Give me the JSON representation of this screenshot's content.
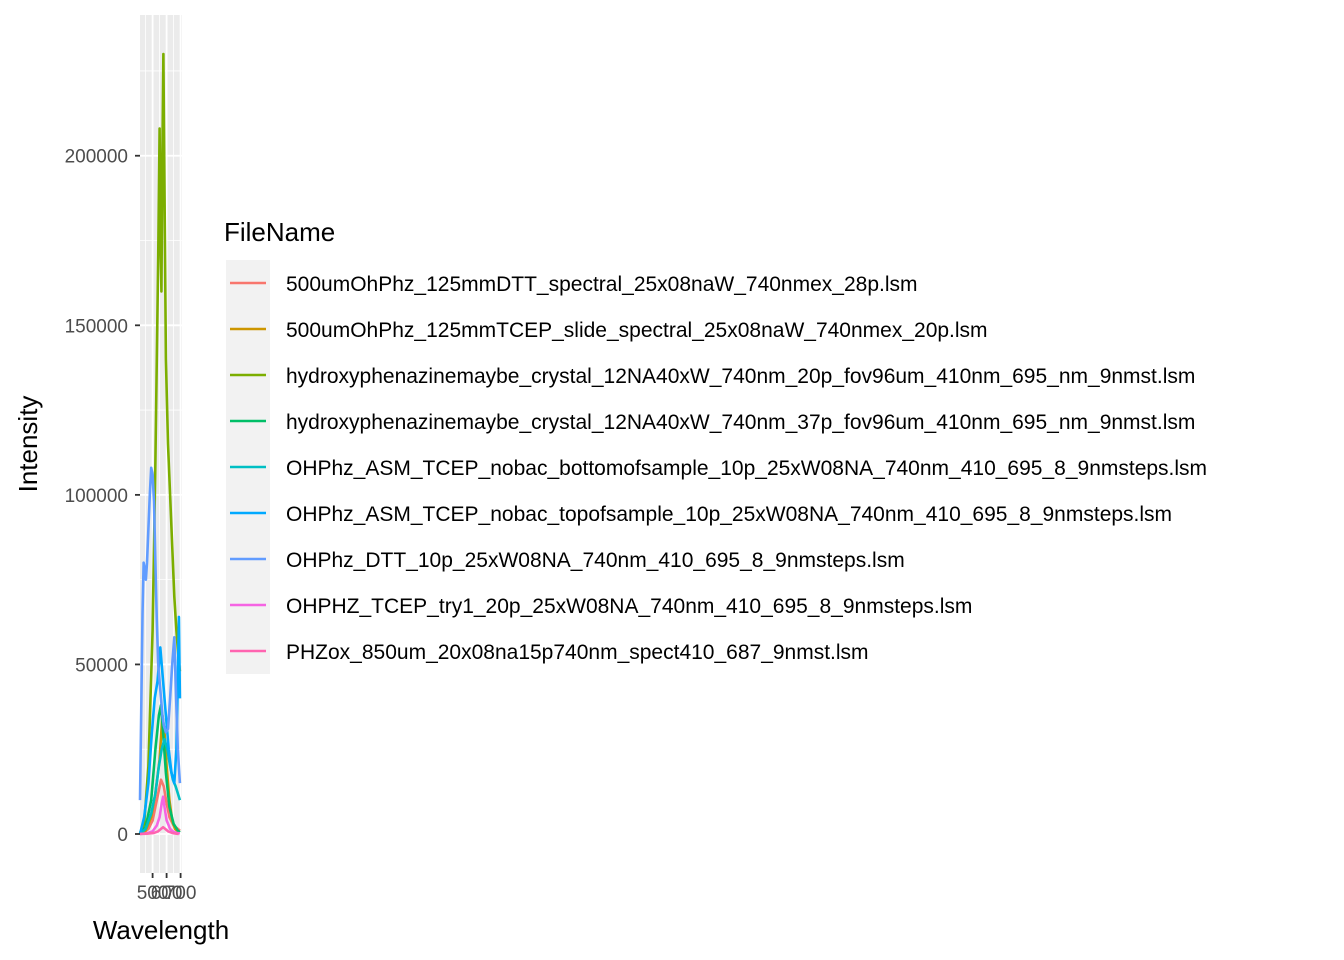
{
  "chart_data": {
    "type": "line",
    "title": "",
    "xlabel": "Wavelength",
    "ylabel": "Intensity",
    "xlim": [
      410,
      710
    ],
    "ylim": [
      -11500,
      241500
    ],
    "x_ticks": [
      500,
      600,
      700
    ],
    "x_tick_labels": [
      "500",
      "600",
      "700"
    ],
    "y_ticks": [
      0,
      50000,
      100000,
      150000,
      200000
    ],
    "y_tick_labels": [
      "0",
      "50000",
      "100000",
      "150000",
      "200000"
    ],
    "grid": true,
    "legend": {
      "title": "FileName",
      "placement": "right"
    },
    "series": [
      {
        "name": "500umOhPhz_125mmDTT_spectral_25x08naW_740nmex_28p.lsm",
        "color": "#F8766D",
        "points": [
          [
            410,
            200
          ],
          [
            440,
            500
          ],
          [
            470,
            1500
          ],
          [
            500,
            4000
          ],
          [
            520,
            8000
          ],
          [
            540,
            12000
          ],
          [
            560,
            16000
          ],
          [
            580,
            14000
          ],
          [
            600,
            9000
          ],
          [
            620,
            5000
          ],
          [
            650,
            2500
          ],
          [
            680,
            1500
          ],
          [
            695,
            1000
          ]
        ]
      },
      {
        "name": "500umOhPhz_125mmTCEP_slide_spectral_25x08naW_740nmex_20p.lsm",
        "color": "#CD9600",
        "points": [
          [
            410,
            200
          ],
          [
            450,
            1000
          ],
          [
            490,
            5000
          ],
          [
            520,
            12000
          ],
          [
            550,
            22000
          ],
          [
            570,
            35000
          ],
          [
            585,
            30000
          ],
          [
            600,
            20000
          ],
          [
            620,
            10000
          ],
          [
            640,
            4000
          ],
          [
            660,
            1500
          ],
          [
            680,
            800
          ],
          [
            695,
            600
          ]
        ]
      },
      {
        "name": "hydroxyphenazinemaybe_crystal_12NA40xW_740nm_20p_fov96um_410nm_695_nm_9nmst.lsm",
        "color": "#7CAE00",
        "points": [
          [
            410,
            300
          ],
          [
            440,
            3000
          ],
          [
            470,
            20000
          ],
          [
            500,
            60000
          ],
          [
            520,
            110000
          ],
          [
            540,
            170000
          ],
          [
            550,
            208000
          ],
          [
            557,
            175000
          ],
          [
            563,
            160000
          ],
          [
            570,
            200000
          ],
          [
            577,
            230000
          ],
          [
            585,
            190000
          ],
          [
            595,
            140000
          ],
          [
            610,
            115000
          ],
          [
            625,
            100000
          ],
          [
            640,
            85000
          ],
          [
            655,
            70000
          ],
          [
            670,
            60000
          ],
          [
            685,
            52000
          ],
          [
            695,
            48000
          ]
        ]
      },
      {
        "name": "hydroxyphenazinemaybe_crystal_12NA40xW_740nm_37p_fov96um_410nm_695_nm_9nmst.lsm",
        "color": "#00BE67",
        "points": [
          [
            410,
            0
          ],
          [
            450,
            2000
          ],
          [
            490,
            10000
          ],
          [
            520,
            25000
          ],
          [
            545,
            35000
          ],
          [
            560,
            38000
          ],
          [
            575,
            30000
          ],
          [
            595,
            18000
          ],
          [
            620,
            8000
          ],
          [
            650,
            3000
          ],
          [
            680,
            1000
          ],
          [
            695,
            500
          ]
        ]
      },
      {
        "name": "OHPhz_ASM_TCEP_nobac_bottomofsample_10p_25xW08NA_740nm_410_695_8_9nmsteps.lsm",
        "color": "#00BFC4",
        "points": [
          [
            410,
            0
          ],
          [
            450,
            1500
          ],
          [
            490,
            6000
          ],
          [
            520,
            12000
          ],
          [
            545,
            20000
          ],
          [
            565,
            25000
          ],
          [
            585,
            28000
          ],
          [
            605,
            25000
          ],
          [
            625,
            20000
          ],
          [
            645,
            16000
          ],
          [
            665,
            14000
          ],
          [
            680,
            12000
          ],
          [
            695,
            10000
          ]
        ]
      },
      {
        "name": "OHPhz_ASM_TCEP_nobac_topofsample_10p_25xW08NA_740nm_410_695_8_9nmsteps.lsm",
        "color": "#00A9FF",
        "points": [
          [
            410,
            0
          ],
          [
            440,
            5000
          ],
          [
            470,
            15000
          ],
          [
            495,
            30000
          ],
          [
            515,
            40000
          ],
          [
            535,
            45000
          ],
          [
            555,
            55000
          ],
          [
            575,
            45000
          ],
          [
            595,
            35000
          ],
          [
            615,
            25000
          ],
          [
            635,
            18000
          ],
          [
            655,
            15000
          ],
          [
            670,
            25000
          ],
          [
            680,
            45000
          ],
          [
            688,
            64000
          ],
          [
            695,
            40000
          ]
        ]
      },
      {
        "name": "OHPhz_DTT_10p_25xW08NA_740nm_410_695_8_9nmsteps.lsm",
        "color": "#619CFF",
        "points": [
          [
            410,
            10000
          ],
          [
            420,
            40000
          ],
          [
            428,
            65000
          ],
          [
            436,
            80000
          ],
          [
            444,
            78000
          ],
          [
            452,
            75000
          ],
          [
            460,
            80000
          ],
          [
            470,
            90000
          ],
          [
            480,
            100000
          ],
          [
            490,
            108000
          ],
          [
            500,
            106000
          ],
          [
            510,
            98000
          ],
          [
            520,
            80000
          ],
          [
            530,
            63000
          ],
          [
            540,
            50000
          ],
          [
            550,
            45000
          ],
          [
            560,
            40000
          ],
          [
            570,
            35000
          ],
          [
            580,
            32000
          ],
          [
            595,
            30000
          ],
          [
            610,
            31000
          ],
          [
            625,
            40000
          ],
          [
            640,
            50000
          ],
          [
            655,
            58000
          ],
          [
            668,
            40000
          ],
          [
            680,
            25000
          ],
          [
            695,
            15000
          ]
        ]
      },
      {
        "name": "OHPHZ_TCEP_try1_20p_25xW08NA_740nm_410_695_8_9nmsteps.lsm",
        "color": "#F564E3",
        "points": [
          [
            410,
            0
          ],
          [
            460,
            200
          ],
          [
            500,
            800
          ],
          [
            530,
            2500
          ],
          [
            550,
            5000
          ],
          [
            565,
            9000
          ],
          [
            575,
            11000
          ],
          [
            585,
            8000
          ],
          [
            600,
            4000
          ],
          [
            625,
            1500
          ],
          [
            650,
            600
          ],
          [
            675,
            300
          ],
          [
            695,
            200
          ]
        ]
      },
      {
        "name": "PHZox_850um_20x08na15p740nm_spect410_687_9nmst.lsm",
        "color": "#FF64B0",
        "points": [
          [
            410,
            0
          ],
          [
            460,
            100
          ],
          [
            510,
            300
          ],
          [
            540,
            800
          ],
          [
            560,
            1500
          ],
          [
            575,
            2000
          ],
          [
            590,
            1500
          ],
          [
            610,
            800
          ],
          [
            640,
            300
          ],
          [
            670,
            100
          ],
          [
            687,
            0
          ]
        ]
      }
    ]
  }
}
